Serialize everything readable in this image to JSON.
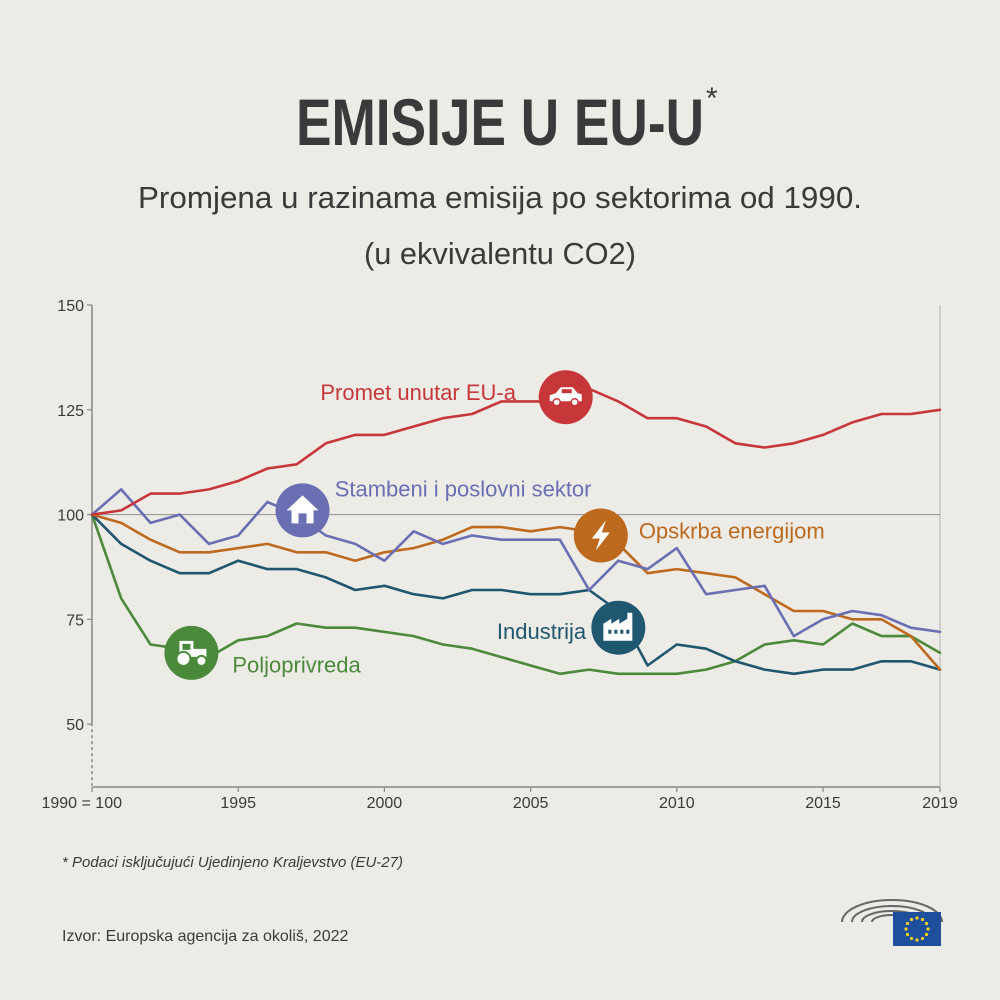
{
  "title": "EMISIJE U EU-U",
  "title_mark": "*",
  "subtitle_line1": "Promjena u razinama emisija po sektorima od 1990.",
  "subtitle_line2": "(u ekvivalentu CO2)",
  "footnote": "* Podaci isključujući Ujedinjeno Kraljevstvo (EU-27)",
  "source": "Izvor: Europska agencija za okoliš, 2022",
  "colors": {
    "background": "#ecebe6",
    "axis": "#888888",
    "gridline": "#9a9a9a",
    "text": "#3a3a3a",
    "eu_flag": "#1d4f9c",
    "eu_stars": "#ffd21f"
  },
  "chart_data": {
    "type": "line",
    "x_start_label": "1990 = 100",
    "x_ticks": [
      1995,
      2000,
      2005,
      2010,
      2015,
      2019
    ],
    "y_ticks": [
      150,
      125,
      100,
      75,
      50
    ],
    "xlim": [
      1990,
      2019
    ],
    "ylim": [
      35,
      150
    ],
    "series": [
      {
        "name": "Promet unutar EU-a",
        "color": "#c7373a",
        "icon": "car-icon",
        "label_anchor_year": 2004.5,
        "label_anchor_value": 129,
        "label_side": "left",
        "icon_year": 2006.2,
        "icon_value": 128,
        "values": [
          [
            1990,
            100
          ],
          [
            1991,
            101
          ],
          [
            1992,
            105
          ],
          [
            1993,
            105
          ],
          [
            1994,
            106
          ],
          [
            1995,
            108
          ],
          [
            1996,
            111
          ],
          [
            1997,
            112
          ],
          [
            1998,
            117
          ],
          [
            1999,
            119
          ],
          [
            2000,
            119
          ],
          [
            2001,
            121
          ],
          [
            2002,
            123
          ],
          [
            2003,
            124
          ],
          [
            2004,
            127
          ],
          [
            2005,
            127
          ],
          [
            2006,
            127
          ],
          [
            2007,
            130
          ],
          [
            2008,
            127
          ],
          [
            2009,
            123
          ],
          [
            2010,
            123
          ],
          [
            2011,
            121
          ],
          [
            2012,
            117
          ],
          [
            2013,
            116
          ],
          [
            2014,
            117
          ],
          [
            2015,
            119
          ],
          [
            2016,
            122
          ],
          [
            2017,
            124
          ],
          [
            2018,
            124
          ],
          [
            2019,
            125
          ]
        ]
      },
      {
        "name": "Stambeni i poslovni sektor",
        "color": "#6a6fb4",
        "icon": "house-icon",
        "label_anchor_year": 1998.3,
        "label_anchor_value": 106,
        "label_side": "right",
        "icon_year": 1997.2,
        "icon_value": 101,
        "values": [
          [
            1990,
            100
          ],
          [
            1991,
            106
          ],
          [
            1992,
            98
          ],
          [
            1993,
            100
          ],
          [
            1994,
            93
          ],
          [
            1995,
            95
          ],
          [
            1996,
            103
          ],
          [
            1997,
            100
          ],
          [
            1998,
            95
          ],
          [
            1999,
            93
          ],
          [
            2000,
            89
          ],
          [
            2001,
            96
          ],
          [
            2002,
            93
          ],
          [
            2003,
            95
          ],
          [
            2004,
            94
          ],
          [
            2005,
            94
          ],
          [
            2006,
            94
          ],
          [
            2007,
            82
          ],
          [
            2008,
            89
          ],
          [
            2009,
            87
          ],
          [
            2010,
            92
          ],
          [
            2011,
            81
          ],
          [
            2012,
            82
          ],
          [
            2013,
            83
          ],
          [
            2014,
            71
          ],
          [
            2015,
            75
          ],
          [
            2016,
            77
          ],
          [
            2017,
            76
          ],
          [
            2018,
            73
          ],
          [
            2019,
            72
          ]
        ]
      },
      {
        "name": "Opskrba energijom",
        "color": "#bd6a1f",
        "icon": "lightning-icon",
        "label_anchor_year": 2008.7,
        "label_anchor_value": 96,
        "label_side": "right",
        "icon_year": 2007.4,
        "icon_value": 95,
        "values": [
          [
            1990,
            100
          ],
          [
            1991,
            98
          ],
          [
            1992,
            94
          ],
          [
            1993,
            91
          ],
          [
            1994,
            91
          ],
          [
            1995,
            92
          ],
          [
            1996,
            93
          ],
          [
            1997,
            91
          ],
          [
            1998,
            91
          ],
          [
            1999,
            89
          ],
          [
            2000,
            91
          ],
          [
            2001,
            92
          ],
          [
            2002,
            94
          ],
          [
            2003,
            97
          ],
          [
            2004,
            97
          ],
          [
            2005,
            96
          ],
          [
            2006,
            97
          ],
          [
            2007,
            96
          ],
          [
            2008,
            93
          ],
          [
            2009,
            86
          ],
          [
            2010,
            87
          ],
          [
            2011,
            86
          ],
          [
            2012,
            85
          ],
          [
            2013,
            81
          ],
          [
            2014,
            77
          ],
          [
            2015,
            77
          ],
          [
            2016,
            75
          ],
          [
            2017,
            75
          ],
          [
            2018,
            71
          ],
          [
            2019,
            63
          ]
        ]
      },
      {
        "name": "Industrija",
        "color": "#1f5670",
        "icon": "factory-icon",
        "label_anchor_year": 2006.9,
        "label_anchor_value": 72,
        "label_side": "left",
        "icon_year": 2008.0,
        "icon_value": 73,
        "values": [
          [
            1990,
            100
          ],
          [
            1991,
            93
          ],
          [
            1992,
            89
          ],
          [
            1993,
            86
          ],
          [
            1994,
            86
          ],
          [
            1995,
            89
          ],
          [
            1996,
            87
          ],
          [
            1997,
            87
          ],
          [
            1998,
            85
          ],
          [
            1999,
            82
          ],
          [
            2000,
            83
          ],
          [
            2001,
            81
          ],
          [
            2002,
            80
          ],
          [
            2003,
            82
          ],
          [
            2004,
            82
          ],
          [
            2005,
            81
          ],
          [
            2006,
            81
          ],
          [
            2007,
            82
          ],
          [
            2008,
            77
          ],
          [
            2009,
            64
          ],
          [
            2010,
            69
          ],
          [
            2011,
            68
          ],
          [
            2012,
            65
          ],
          [
            2013,
            63
          ],
          [
            2014,
            62
          ],
          [
            2015,
            63
          ],
          [
            2016,
            63
          ],
          [
            2017,
            65
          ],
          [
            2018,
            65
          ],
          [
            2019,
            63
          ]
        ]
      },
      {
        "name": "Poljoprivreda",
        "color": "#4a8a3a",
        "icon": "tractor-icon",
        "label_anchor_year": 1994.8,
        "label_anchor_value": 64,
        "label_side": "right",
        "icon_year": 1993.4,
        "icon_value": 67,
        "values": [
          [
            1990,
            100
          ],
          [
            1991,
            80
          ],
          [
            1992,
            69
          ],
          [
            1993,
            68
          ],
          [
            1994,
            66
          ],
          [
            1995,
            70
          ],
          [
            1996,
            71
          ],
          [
            1997,
            74
          ],
          [
            1998,
            73
          ],
          [
            1999,
            73
          ],
          [
            2000,
            72
          ],
          [
            2001,
            71
          ],
          [
            2002,
            69
          ],
          [
            2003,
            68
          ],
          [
            2004,
            66
          ],
          [
            2005,
            64
          ],
          [
            2006,
            62
          ],
          [
            2007,
            63
          ],
          [
            2008,
            62
          ],
          [
            2009,
            62
          ],
          [
            2010,
            62
          ],
          [
            2011,
            63
          ],
          [
            2012,
            65
          ],
          [
            2013,
            69
          ],
          [
            2014,
            70
          ],
          [
            2015,
            69
          ],
          [
            2016,
            74
          ],
          [
            2017,
            71
          ],
          [
            2018,
            71
          ],
          [
            2019,
            67
          ]
        ]
      }
    ]
  }
}
